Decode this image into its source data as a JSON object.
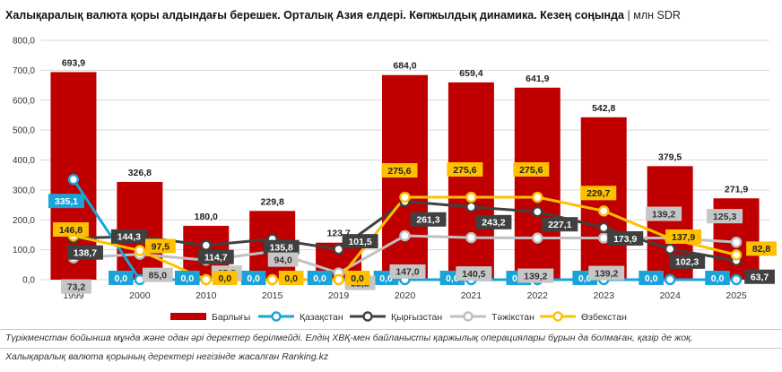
{
  "header": {
    "title": "Халықаралық валюта қоры алдындағы берешек. Орталық Азия елдері. Көпжылдық динамика. Кезең соңында",
    "separator": "|",
    "unit": "млн SDR"
  },
  "chart_data": {
    "type": "bar",
    "categories": [
      "1999",
      "2000",
      "2010",
      "2015",
      "2019",
      "2020",
      "2021",
      "2022",
      "2023",
      "2024",
      "2025"
    ],
    "ylim": [
      0,
      800
    ],
    "yticks": [
      "0,0",
      "100,0",
      "200,0",
      "300,0",
      "400,0",
      "500,0",
      "600,0",
      "700,0",
      "800,0"
    ],
    "grid": true,
    "legend_position": "bottom",
    "series": [
      {
        "name": "Барлығы",
        "kind": "bar",
        "color": "#c00000",
        "values": [
          693.9,
          326.8,
          180.0,
          229.8,
          123.7,
          684.0,
          659.4,
          641.9,
          542.8,
          379.5,
          271.9
        ],
        "labels": [
          "693,9",
          "326,8",
          "180,0",
          "229,8",
          "123,7",
          "684,0",
          "659,4",
          "641,9",
          "542,8",
          "379,5",
          "271,9"
        ]
      },
      {
        "name": "Қазақстан",
        "kind": "line",
        "color": "#1aa3d9",
        "values": [
          335.1,
          0,
          0,
          0,
          0,
          0,
          0,
          0,
          0,
          0,
          0
        ],
        "labels": [
          "335,1",
          "0,0",
          "0,0",
          "0,0",
          "0,0",
          "0,0",
          "0,0",
          "0,0",
          "0,0",
          "0,0",
          "0,0"
        ]
      },
      {
        "name": "Қырғызстан",
        "kind": "line",
        "color": "#404040",
        "values": [
          138.7,
          144.3,
          114.7,
          135.8,
          101.5,
          261.3,
          243.2,
          227.1,
          173.9,
          102.3,
          63.7
        ],
        "labels": [
          "138,7",
          "144,3",
          "114,7",
          "135,8",
          "101,5",
          "261,3",
          "243,2",
          "227,1",
          "173,9",
          "102,3",
          "63,7"
        ]
      },
      {
        "name": "Тәжікстан",
        "kind": "line",
        "color": "#c0c0c0",
        "values": [
          73.2,
          85.0,
          65.3,
          94.0,
          22.2,
          147.0,
          140.5,
          139.2,
          139.2,
          139.2,
          125.3
        ],
        "labels": [
          "73,2",
          "85,0",
          "65,3",
          "94,0",
          "22,2",
          "147,0",
          "140,5",
          "139,2",
          "139,2",
          "139,2",
          "125,3"
        ]
      },
      {
        "name": "Өзбекстан",
        "kind": "line",
        "color": "#ffc000",
        "values": [
          146.8,
          97.5,
          0,
          0,
          0,
          275.6,
          275.6,
          275.6,
          229.7,
          137.9,
          82.8
        ],
        "labels": [
          "146,8",
          "97,5",
          "0,0",
          "0,0",
          "0,0",
          "275,6",
          "275,6",
          "275,6",
          "229,7",
          "137,9",
          "82,8"
        ]
      }
    ]
  },
  "footnote": "Түрікменстан бойынша мұнда және одан әрі деректер берілмейді. Елдің ХВҚ-мен байланысты қаржылық операциялары бұрын да болмаған, қазір де жоқ.",
  "source": "Халықаралық валюта қорының деректері негізінде жасалған Ranking.kz"
}
